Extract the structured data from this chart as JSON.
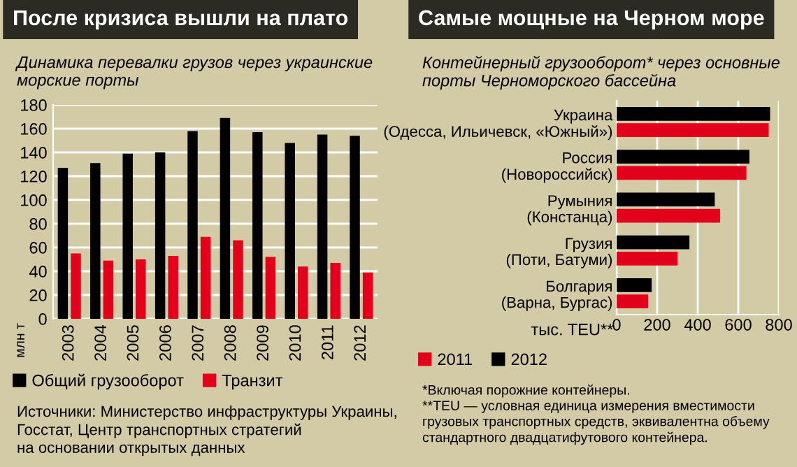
{
  "chart_data": [
    {
      "type": "bar",
      "title": "После кризиса вышли на плато",
      "subtitle": "Динамика перевалки грузов через украинские\nморские порты",
      "ylabel": "млн т",
      "categories": [
        "2003",
        "2004",
        "2005",
        "2006",
        "2007",
        "2008",
        "2009",
        "2010",
        "2011",
        "2012"
      ],
      "series": [
        {
          "name": "Общий грузооборот",
          "color": "#000000",
          "values": [
            127,
            131,
            139,
            140,
            158,
            169,
            157,
            148,
            155,
            154
          ]
        },
        {
          "name": "Транзит",
          "color": "#e2001a",
          "values": [
            55,
            49,
            50,
            53,
            69,
            66,
            52,
            44,
            47,
            39
          ]
        }
      ],
      "ylim": [
        0,
        180
      ],
      "yticks": [
        0,
        20,
        40,
        60,
        80,
        100,
        120,
        140,
        160,
        180
      ],
      "grid": "y",
      "legend": "bottom",
      "annotations": [
        "Источники: Министерство инфраструктуры Украины,\nГосстат, Центр транспортных стратегий\nна основании открытых данных"
      ]
    },
    {
      "type": "bar",
      "orientation": "horizontal",
      "title": "Самые мощные на Черном море",
      "subtitle": "Контейнерный грузооборот* через основные\nпорты Черноморского бассейна",
      "xlabel": "тыс. TEU**",
      "categories": [
        "Украина\n(Одесса, Ильичевск, «Южный»)",
        "Россия\n(Новороссийск)",
        "Румыния\n(Констанца)",
        "Грузия\n(Поти, Батуми)",
        "Болгария\n(Варна, Бургас)"
      ],
      "series": [
        {
          "name": "2011",
          "color": "#e2001a",
          "values": [
            750,
            640,
            510,
            300,
            155
          ]
        },
        {
          "name": "2012",
          "color": "#000000",
          "values": [
            757,
            655,
            484,
            359,
            173
          ]
        }
      ],
      "xlim": [
        0,
        800
      ],
      "xticks": [
        0,
        200,
        400,
        600,
        800
      ],
      "grid": "x",
      "legend": "bottom",
      "annotations": [
        "*Включая порожние контейнеры.\n**TEU — условная единица измерения вместимости\nгрузовых транспортных средств, эквивалентна объему\nстандартного двадцатифутового контейнера."
      ]
    }
  ]
}
